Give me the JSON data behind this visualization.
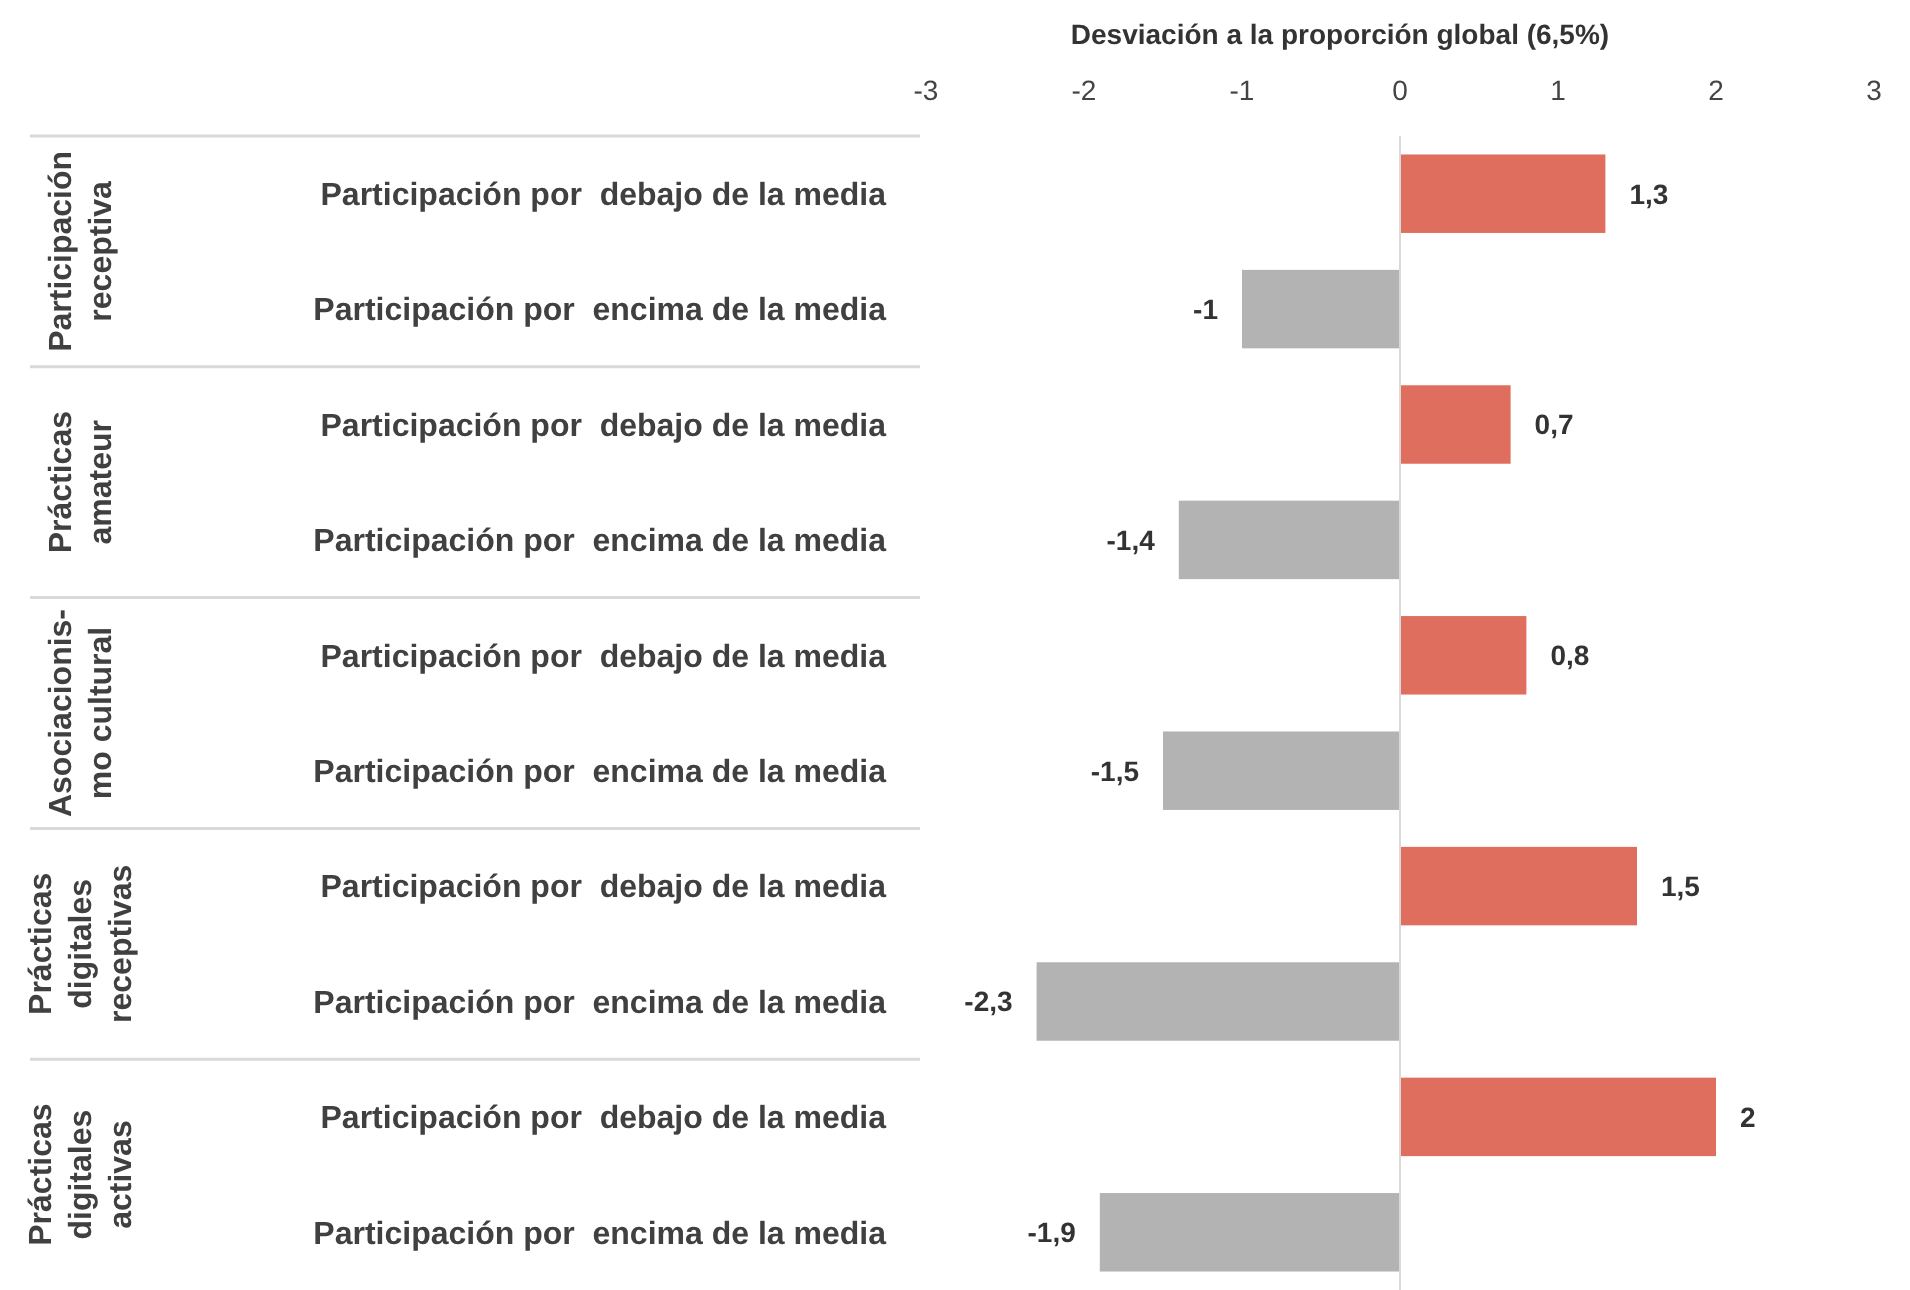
{
  "chart_data": {
    "type": "bar",
    "orientation": "horizontal",
    "xlabel": "Desviación a la proporción global (6,5%)",
    "categories": [
      "Participación por  debajo de la media",
      "Participación por  encima de la media",
      "Participación por  debajo de la media",
      "Participación por  encima de la media",
      "Participación por  debajo de la media",
      "Participación por  encima de la media",
      "Participación por  debajo de la media",
      "Participación por  encima de la media",
      "Participación por  debajo de la media",
      "Participación por  encima de la media"
    ],
    "values": [
      1.3,
      -1,
      0.7,
      -1.4,
      0.8,
      -1.5,
      1.5,
      -2.3,
      2,
      -1.9
    ],
    "colors": [
      "#e06e5e",
      "#b3b3b3",
      "#e06e5e",
      "#b3b3b3",
      "#e06e5e",
      "#b3b3b3",
      "#e06e5e",
      "#b3b3b3",
      "#e06e5e",
      "#b3b3b3"
    ],
    "xlim": [
      -3,
      3
    ],
    "xticks": [
      -3,
      -2,
      -1,
      0,
      1,
      2,
      3
    ],
    "value_labels": [
      "1,3",
      "-1",
      "0,7",
      "-1,4",
      "0,8",
      "-1,5",
      "1,5",
      "-2,3",
      "2",
      "-1,9"
    ],
    "ref_lines": [
      {
        "axis": "x",
        "value": 0,
        "color": "#d9d9d9"
      }
    ],
    "annotations": [
      "Participación receptiva",
      "Prácticas amateur",
      "Asociacionis-mo cultural",
      "Prácticas digitales receptivas",
      "Prácticas digitales activas"
    ]
  }
}
